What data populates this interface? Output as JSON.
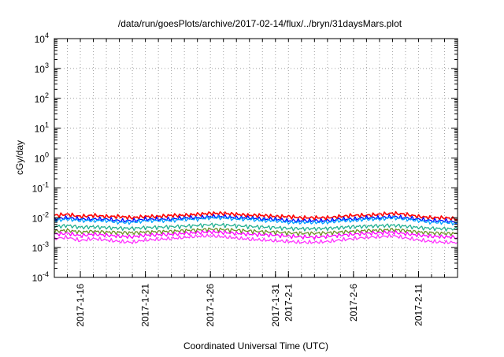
{
  "chart_data": {
    "type": "line",
    "title": "/data/run/goesPlots/archive/2017-02-14/flux/../bryn/31daysMars.plot",
    "xlabel": "Coordinated Universal Time (UTC)",
    "ylabel": "cGy/day",
    "yscale": "log",
    "ylim": [
      0.0001,
      10000
    ],
    "xlim": [
      "2017-01-14",
      "2017-02-14"
    ],
    "grid": true,
    "y_ticks": [
      {
        "value": 0.0001,
        "base": "10",
        "exp": "-4"
      },
      {
        "value": 0.001,
        "base": "10",
        "exp": "-3"
      },
      {
        "value": 0.01,
        "base": "10",
        "exp": "-2"
      },
      {
        "value": 0.1,
        "base": "10",
        "exp": "-1"
      },
      {
        "value": 1,
        "base": "10",
        "exp": "0"
      },
      {
        "value": 10,
        "base": "10",
        "exp": "1"
      },
      {
        "value": 100,
        "base": "10",
        "exp": "2"
      },
      {
        "value": 1000,
        "base": "10",
        "exp": "3"
      },
      {
        "value": 10000,
        "base": "10",
        "exp": "4"
      }
    ],
    "x_ticks": [
      {
        "date": "2017-01-16",
        "label": "2017-1-16"
      },
      {
        "date": "2017-01-21",
        "label": "2017-1-21"
      },
      {
        "date": "2017-01-26",
        "label": "2017-1-26"
      },
      {
        "date": "2017-01-31",
        "label": "2017-1-31"
      },
      {
        "date": "2017-02-01",
        "label": "2017-2-1"
      },
      {
        "date": "2017-02-06",
        "label": "2017-2-6"
      },
      {
        "date": "2017-02-11",
        "label": "2017-2-11"
      }
    ],
    "x": [
      "2017-01-14",
      "2017-01-15",
      "2017-01-16",
      "2017-01-17",
      "2017-01-18",
      "2017-01-19",
      "2017-01-20",
      "2017-01-21",
      "2017-01-22",
      "2017-01-23",
      "2017-01-24",
      "2017-01-25",
      "2017-01-26",
      "2017-01-27",
      "2017-01-28",
      "2017-01-29",
      "2017-01-30",
      "2017-01-31",
      "2017-02-01",
      "2017-02-02",
      "2017-02-03",
      "2017-02-04",
      "2017-02-05",
      "2017-02-06",
      "2017-02-07",
      "2017-02-08",
      "2017-02-09",
      "2017-02-10",
      "2017-02-11",
      "2017-02-12",
      "2017-02-13",
      "2017-02-14"
    ],
    "series": [
      {
        "color": "#ff0000",
        "values": [
          0.012,
          0.013,
          0.011,
          0.012,
          0.011,
          0.011,
          0.01,
          0.011,
          0.011,
          0.012,
          0.012,
          0.013,
          0.014,
          0.014,
          0.013,
          0.012,
          0.012,
          0.011,
          0.011,
          0.01,
          0.01,
          0.01,
          0.011,
          0.012,
          0.012,
          0.013,
          0.014,
          0.013,
          0.011,
          0.01,
          0.01,
          0.009
        ]
      },
      {
        "color": "#0000ff",
        "values": [
          0.009,
          0.01,
          0.009,
          0.009,
          0.009,
          0.008,
          0.008,
          0.009,
          0.009,
          0.009,
          0.01,
          0.01,
          0.011,
          0.011,
          0.01,
          0.01,
          0.009,
          0.009,
          0.008,
          0.008,
          0.008,
          0.008,
          0.009,
          0.009,
          0.01,
          0.01,
          0.011,
          0.01,
          0.009,
          0.008,
          0.008,
          0.007
        ]
      },
      {
        "color": "#00a0ff",
        "values": [
          0.008,
          0.009,
          0.008,
          0.008,
          0.008,
          0.007,
          0.007,
          0.008,
          0.008,
          0.008,
          0.009,
          0.009,
          0.01,
          0.01,
          0.009,
          0.009,
          0.008,
          0.008,
          0.007,
          0.007,
          0.007,
          0.007,
          0.008,
          0.008,
          0.009,
          0.009,
          0.01,
          0.009,
          0.008,
          0.007,
          0.007,
          0.0065
        ]
      },
      {
        "color": "#20b090",
        "values": [
          0.005,
          0.0055,
          0.0048,
          0.005,
          0.0047,
          0.0045,
          0.0044,
          0.0047,
          0.0048,
          0.005,
          0.0052,
          0.0055,
          0.0058,
          0.0057,
          0.0054,
          0.0051,
          0.0049,
          0.0047,
          0.0044,
          0.0043,
          0.0043,
          0.0044,
          0.0047,
          0.005,
          0.0052,
          0.0054,
          0.0056,
          0.0052,
          0.0047,
          0.0044,
          0.0043,
          0.0042
        ]
      },
      {
        "color": "#6b8e23",
        "values": [
          0.0035,
          0.0038,
          0.0033,
          0.0035,
          0.0033,
          0.0032,
          0.0031,
          0.0033,
          0.0034,
          0.0035,
          0.0037,
          0.0039,
          0.0041,
          0.004,
          0.0038,
          0.0036,
          0.0034,
          0.0033,
          0.0031,
          0.003,
          0.003,
          0.0031,
          0.0033,
          0.0035,
          0.0037,
          0.0038,
          0.004,
          0.0037,
          0.0033,
          0.0031,
          0.003,
          0.0029
        ]
      },
      {
        "color": "#ff00ff",
        "values": [
          0.0028,
          0.003,
          0.0025,
          0.0028,
          0.0026,
          0.0024,
          0.0023,
          0.0026,
          0.0027,
          0.0028,
          0.003,
          0.0032,
          0.0034,
          0.0032,
          0.003,
          0.0028,
          0.0027,
          0.0026,
          0.0024,
          0.0023,
          0.0022,
          0.0024,
          0.0026,
          0.0028,
          0.003,
          0.0031,
          0.0033,
          0.0029,
          0.0026,
          0.0024,
          0.0023,
          0.0022
        ]
      },
      {
        "color": "#ff33ff",
        "values": [
          0.002,
          0.0022,
          0.0017,
          0.002,
          0.0018,
          0.0016,
          0.0015,
          0.0018,
          0.0019,
          0.002,
          0.0022,
          0.0024,
          0.0025,
          0.0023,
          0.0021,
          0.0019,
          0.0018,
          0.0017,
          0.0016,
          0.0015,
          0.0015,
          0.0016,
          0.0018,
          0.002,
          0.0022,
          0.0023,
          0.0025,
          0.0021,
          0.0018,
          0.0016,
          0.0015,
          0.0015
        ]
      }
    ]
  }
}
